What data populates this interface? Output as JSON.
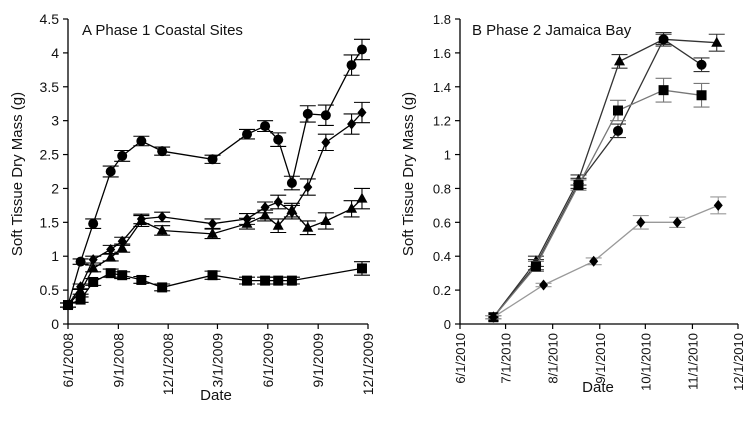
{
  "chart_data": [
    {
      "panel_label": "A Phase 1 Coastal Sites",
      "type": "line",
      "xlabel": "Date",
      "ylabel": "Soft Tissue Dry Mass (g)",
      "x_ticks": [
        "6/1/2008",
        "9/1/2008",
        "12/1/2008",
        "3/1/2009",
        "6/1/2009",
        "9/1/2009",
        "12/1/2009"
      ],
      "y_ticks": [
        "0",
        "0.5",
        "1",
        "1.5",
        "2",
        "2.5",
        "3",
        "3.5",
        "4",
        "4.5"
      ],
      "xlim": [
        "2008-06-01",
        "2009-12-01"
      ],
      "ylim": [
        0,
        4.5
      ],
      "series": [
        {
          "marker": "circle",
          "color": "#000000",
          "points": [
            {
              "x": "2008-06-01",
              "y": 0.28,
              "e": 0.03
            },
            {
              "x": "2008-06-24",
              "y": 0.92,
              "e": 0.04
            },
            {
              "x": "2008-07-17",
              "y": 1.48,
              "e": 0.07
            },
            {
              "x": "2008-08-18",
              "y": 2.25,
              "e": 0.08
            },
            {
              "x": "2008-09-08",
              "y": 2.48,
              "e": 0.08
            },
            {
              "x": "2008-10-13",
              "y": 2.7,
              "e": 0.07
            },
            {
              "x": "2008-11-20",
              "y": 2.55,
              "e": 0.06
            },
            {
              "x": "2009-02-20",
              "y": 2.43,
              "e": 0.06
            },
            {
              "x": "2009-04-24",
              "y": 2.8,
              "e": 0.07
            },
            {
              "x": "2009-05-27",
              "y": 2.92,
              "e": 0.08
            },
            {
              "x": "2009-06-20",
              "y": 2.72,
              "e": 0.1
            },
            {
              "x": "2009-07-15",
              "y": 2.08,
              "e": 0.1
            },
            {
              "x": "2009-08-13",
              "y": 3.1,
              "e": 0.12
            },
            {
              "x": "2009-09-15",
              "y": 3.08,
              "e": 0.15
            },
            {
              "x": "2009-11-01",
              "y": 3.82,
              "e": 0.15
            },
            {
              "x": "2009-11-20",
              "y": 4.05,
              "e": 0.15
            }
          ]
        },
        {
          "marker": "triangle",
          "color": "#000000",
          "points": [
            {
              "x": "2008-06-01",
              "y": 0.28,
              "e": 0.03
            },
            {
              "x": "2008-06-24",
              "y": 0.48,
              "e": 0.04
            },
            {
              "x": "2008-07-17",
              "y": 0.82,
              "e": 0.05
            },
            {
              "x": "2008-08-18",
              "y": 0.98,
              "e": 0.05
            },
            {
              "x": "2008-09-08",
              "y": 1.12,
              "e": 0.06
            },
            {
              "x": "2008-10-13",
              "y": 1.52,
              "e": 0.08
            },
            {
              "x": "2008-11-20",
              "y": 1.38,
              "e": 0.07
            },
            {
              "x": "2009-02-20",
              "y": 1.33,
              "e": 0.07
            },
            {
              "x": "2009-04-24",
              "y": 1.48,
              "e": 0.08
            },
            {
              "x": "2009-05-27",
              "y": 1.6,
              "e": 0.08
            },
            {
              "x": "2009-06-20",
              "y": 1.45,
              "e": 0.1
            },
            {
              "x": "2009-07-15",
              "y": 1.68,
              "e": 0.1
            },
            {
              "x": "2009-08-13",
              "y": 1.42,
              "e": 0.1
            },
            {
              "x": "2009-09-15",
              "y": 1.52,
              "e": 0.12
            },
            {
              "x": "2009-11-01",
              "y": 1.7,
              "e": 0.12
            },
            {
              "x": "2009-11-20",
              "y": 1.85,
              "e": 0.15
            }
          ]
        },
        {
          "marker": "diamond",
          "color": "#000000",
          "points": [
            {
              "x": "2008-06-01",
              "y": 0.28,
              "e": 0.03
            },
            {
              "x": "2008-06-24",
              "y": 0.55,
              "e": 0.04
            },
            {
              "x": "2008-07-17",
              "y": 0.95,
              "e": 0.05
            },
            {
              "x": "2008-08-18",
              "y": 1.1,
              "e": 0.06
            },
            {
              "x": "2008-09-08",
              "y": 1.22,
              "e": 0.06
            },
            {
              "x": "2008-10-13",
              "y": 1.55,
              "e": 0.07
            },
            {
              "x": "2008-11-20",
              "y": 1.58,
              "e": 0.07
            },
            {
              "x": "2009-02-20",
              "y": 1.48,
              "e": 0.07
            },
            {
              "x": "2009-04-24",
              "y": 1.55,
              "e": 0.08
            },
            {
              "x": "2009-05-27",
              "y": 1.72,
              "e": 0.08
            },
            {
              "x": "2009-06-20",
              "y": 1.8,
              "e": 0.1
            },
            {
              "x": "2009-07-15",
              "y": 1.65,
              "e": 0.1
            },
            {
              "x": "2009-08-13",
              "y": 2.02,
              "e": 0.12
            },
            {
              "x": "2009-09-15",
              "y": 2.68,
              "e": 0.12
            },
            {
              "x": "2009-11-01",
              "y": 2.95,
              "e": 0.15
            },
            {
              "x": "2009-11-20",
              "y": 3.12,
              "e": 0.15
            }
          ]
        },
        {
          "marker": "square",
          "color": "#000000",
          "points": [
            {
              "x": "2008-06-01",
              "y": 0.28,
              "e": 0.03
            },
            {
              "x": "2008-06-24",
              "y": 0.36,
              "e": 0.04
            },
            {
              "x": "2008-07-17",
              "y": 0.62,
              "e": 0.05
            },
            {
              "x": "2008-08-18",
              "y": 0.75,
              "e": 0.06
            },
            {
              "x": "2008-09-08",
              "y": 0.72,
              "e": 0.05
            },
            {
              "x": "2008-10-13",
              "y": 0.65,
              "e": 0.05
            },
            {
              "x": "2008-11-20",
              "y": 0.54,
              "e": 0.05
            },
            {
              "x": "2009-02-20",
              "y": 0.72,
              "e": 0.06
            },
            {
              "x": "2009-04-24",
              "y": 0.64,
              "e": 0.05
            },
            {
              "x": "2009-05-27",
              "y": 0.64,
              "e": 0.05
            },
            {
              "x": "2009-06-20",
              "y": 0.64,
              "e": 0.05
            },
            {
              "x": "2009-07-15",
              "y": 0.64,
              "e": 0.05
            },
            {
              "x": "2009-11-20",
              "y": 0.82,
              "e": 0.1
            }
          ]
        }
      ]
    },
    {
      "panel_label": "B Phase 2 Jamaica Bay",
      "type": "line",
      "xlabel": "Date",
      "ylabel": "Soft Tissue Dry Mass (g)",
      "x_ticks": [
        "6/1/2010",
        "7/1/2010",
        "8/1/2010",
        "9/1/2010",
        "10/1/2010",
        "11/1/2010",
        "12/1/2010"
      ],
      "y_ticks": [
        "0",
        "0.2",
        "0.4",
        "0.6",
        "0.8",
        "1",
        "1.2",
        "1.4",
        "1.6",
        "1.8"
      ],
      "xlim": [
        "2010-06-01",
        "2010-12-01"
      ],
      "ylim": [
        0,
        1.8
      ],
      "series": [
        {
          "marker": "triangle",
          "color": "#333333",
          "points": [
            {
              "x": "2010-06-23",
              "y": 0.04,
              "e": 0.01
            },
            {
              "x": "2010-07-21",
              "y": 0.37,
              "e": 0.03
            },
            {
              "x": "2010-08-18",
              "y": 0.85,
              "e": 0.03
            },
            {
              "x": "2010-09-14",
              "y": 1.55,
              "e": 0.04
            },
            {
              "x": "2010-10-13",
              "y": 1.68,
              "e": 0.04
            },
            {
              "x": "2010-11-17",
              "y": 1.66,
              "e": 0.05
            }
          ]
        },
        {
          "marker": "circle",
          "color": "#333333",
          "points": [
            {
              "x": "2010-06-23",
              "y": 0.04,
              "e": 0.01
            },
            {
              "x": "2010-07-21",
              "y": 0.35,
              "e": 0.03
            },
            {
              "x": "2010-08-18",
              "y": 0.83,
              "e": 0.03
            },
            {
              "x": "2010-09-13",
              "y": 1.14,
              "e": 0.04
            },
            {
              "x": "2010-10-13",
              "y": 1.68,
              "e": 0.03
            },
            {
              "x": "2010-11-07",
              "y": 1.53,
              "e": 0.04
            }
          ]
        },
        {
          "marker": "square",
          "color": "#777777",
          "points": [
            {
              "x": "2010-06-23",
              "y": 0.04,
              "e": 0.01
            },
            {
              "x": "2010-07-21",
              "y": 0.34,
              "e": 0.03
            },
            {
              "x": "2010-08-18",
              "y": 0.82,
              "e": 0.03
            },
            {
              "x": "2010-09-13",
              "y": 1.26,
              "e": 0.06
            },
            {
              "x": "2010-10-13",
              "y": 1.38,
              "e": 0.07
            },
            {
              "x": "2010-11-07",
              "y": 1.35,
              "e": 0.07
            }
          ]
        },
        {
          "marker": "diamond",
          "color": "#999999",
          "points": [
            {
              "x": "2010-06-23",
              "y": 0.04,
              "e": 0.01
            },
            {
              "x": "2010-07-26",
              "y": 0.23,
              "e": 0.01
            },
            {
              "x": "2010-08-28",
              "y": 0.37,
              "e": 0.02
            },
            {
              "x": "2010-09-28",
              "y": 0.6,
              "e": 0.04
            },
            {
              "x": "2010-10-22",
              "y": 0.6,
              "e": 0.03
            },
            {
              "x": "2010-11-18",
              "y": 0.7,
              "e": 0.05
            }
          ]
        }
      ]
    }
  ]
}
